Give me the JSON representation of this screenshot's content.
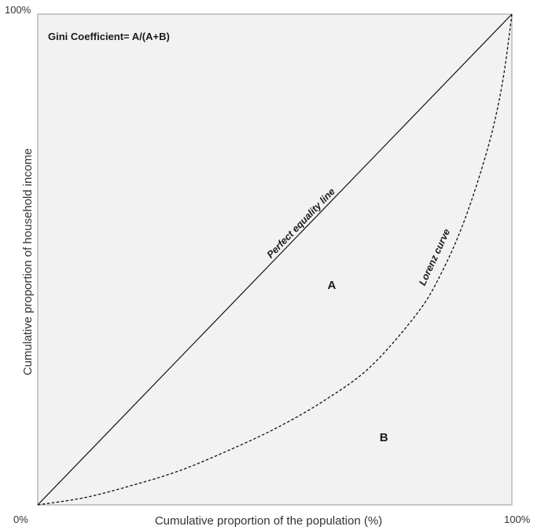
{
  "chart_data": {
    "type": "line",
    "title": "Gini Coefficient= A/(A+B)",
    "xlabel": "Cumulative proportion of the population (%)",
    "ylabel": "Cumulative proportion of household income",
    "xlim": [
      0,
      100
    ],
    "ylim": [
      0,
      100
    ],
    "x_tick_labels": {
      "min": "0%",
      "max": "100%"
    },
    "y_tick_labels": {
      "max": "100%"
    },
    "grid": false,
    "background_color": "#f2f2f2",
    "series": [
      {
        "name": "Perfect equality line",
        "style": "solid",
        "color": "#111111",
        "x": [
          0,
          100
        ],
        "y": [
          0,
          100
        ]
      },
      {
        "name": "Lorenz curve",
        "style": "dashed",
        "color": "#111111",
        "x": [
          0,
          10,
          20,
          30,
          40,
          50,
          60,
          70,
          80,
          85,
          90,
          95,
          98,
          100
        ],
        "y": [
          0,
          1.5,
          4,
          7,
          11,
          15.5,
          21,
          28,
          39,
          47,
          58,
          73,
          86,
          100
        ]
      }
    ],
    "annotations": [
      {
        "text": "A",
        "x": 62,
        "y": 44
      },
      {
        "text": "B",
        "x": 73,
        "y": 13
      }
    ]
  }
}
